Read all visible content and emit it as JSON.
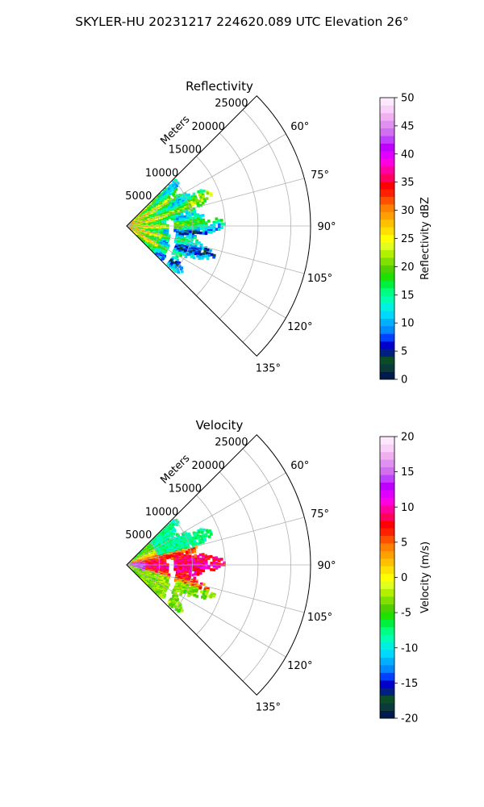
{
  "figure": {
    "suptitle": "SKYLER-HU  20231217  224620.089 UTC Elevation 26°"
  },
  "chart_data": [
    {
      "type": "heatmap",
      "subtype": "polar-sector-ppi",
      "title": "Reflectivity",
      "range_axis_label": "Meters",
      "range_ticks": [
        5000,
        10000,
        15000,
        20000,
        25000
      ],
      "range_max": 28000,
      "azimuth_range_deg": [
        45,
        135
      ],
      "azimuth_ticks": [
        "60°",
        "75°",
        "90°",
        "105°",
        "120°",
        "135°"
      ],
      "azimuth_tick_values": [
        60,
        75,
        90,
        105,
        120,
        135
      ],
      "grid": true,
      "echo_extent_m": 14500,
      "colorbar": {
        "label": "Reflectivity dBZ",
        "min": 0,
        "max": 50,
        "ticks": [
          0,
          5,
          10,
          15,
          20,
          25,
          30,
          35,
          40,
          45,
          50
        ],
        "colors": [
          "#001a4d",
          "#0a3a3a",
          "#0a4d26",
          "#002080",
          "#0000cc",
          "#0040ff",
          "#0088ff",
          "#00b0ff",
          "#00d8ff",
          "#00f0e0",
          "#00ffb0",
          "#00ff80",
          "#00f040",
          "#20e000",
          "#50d000",
          "#80e000",
          "#b0f000",
          "#e0ff20",
          "#ffff00",
          "#ffe000",
          "#ffc000",
          "#ffa000",
          "#ff8000",
          "#ff5000",
          "#ff2000",
          "#ff0000",
          "#ff0060",
          "#ff00a0",
          "#ff00e0",
          "#e000ff",
          "#c000ff",
          "#c040ff",
          "#d070f0",
          "#e090f0",
          "#f0b0f0",
          "#f8d0f8",
          "#fde8fd"
        ]
      }
    },
    {
      "type": "heatmap",
      "subtype": "polar-sector-ppi",
      "title": "Velocity",
      "range_axis_label": "Meters",
      "range_ticks": [
        5000,
        10000,
        15000,
        20000,
        25000
      ],
      "range_max": 28000,
      "azimuth_range_deg": [
        45,
        135
      ],
      "azimuth_ticks": [
        "60°",
        "75°",
        "90°",
        "105°",
        "120°",
        "135°"
      ],
      "azimuth_tick_values": [
        60,
        75,
        90,
        105,
        120,
        135
      ],
      "grid": true,
      "echo_extent_m": 14500,
      "colorbar": {
        "label": "Velocity (m/s)",
        "min": -20,
        "max": 20,
        "ticks": [
          -20,
          -15,
          -10,
          -5,
          0,
          5,
          10,
          15,
          20
        ],
        "colors": [
          "#001a4d",
          "#0a3a3a",
          "#0a4d26",
          "#002080",
          "#0000cc",
          "#0040ff",
          "#0088ff",
          "#00b0ff",
          "#00d8ff",
          "#00f0e0",
          "#00ffb0",
          "#00ff80",
          "#00f040",
          "#20e000",
          "#50d000",
          "#80e000",
          "#b0f000",
          "#e0ff20",
          "#ffff00",
          "#ffe000",
          "#ffc000",
          "#ffa000",
          "#ff8000",
          "#ff5000",
          "#ff2000",
          "#ff0000",
          "#ff0060",
          "#ff00a0",
          "#ff00e0",
          "#e000ff",
          "#c000ff",
          "#c040ff",
          "#d070f0",
          "#e090f0",
          "#f0b0f0",
          "#f8d0f8",
          "#fde8fd"
        ]
      }
    }
  ]
}
